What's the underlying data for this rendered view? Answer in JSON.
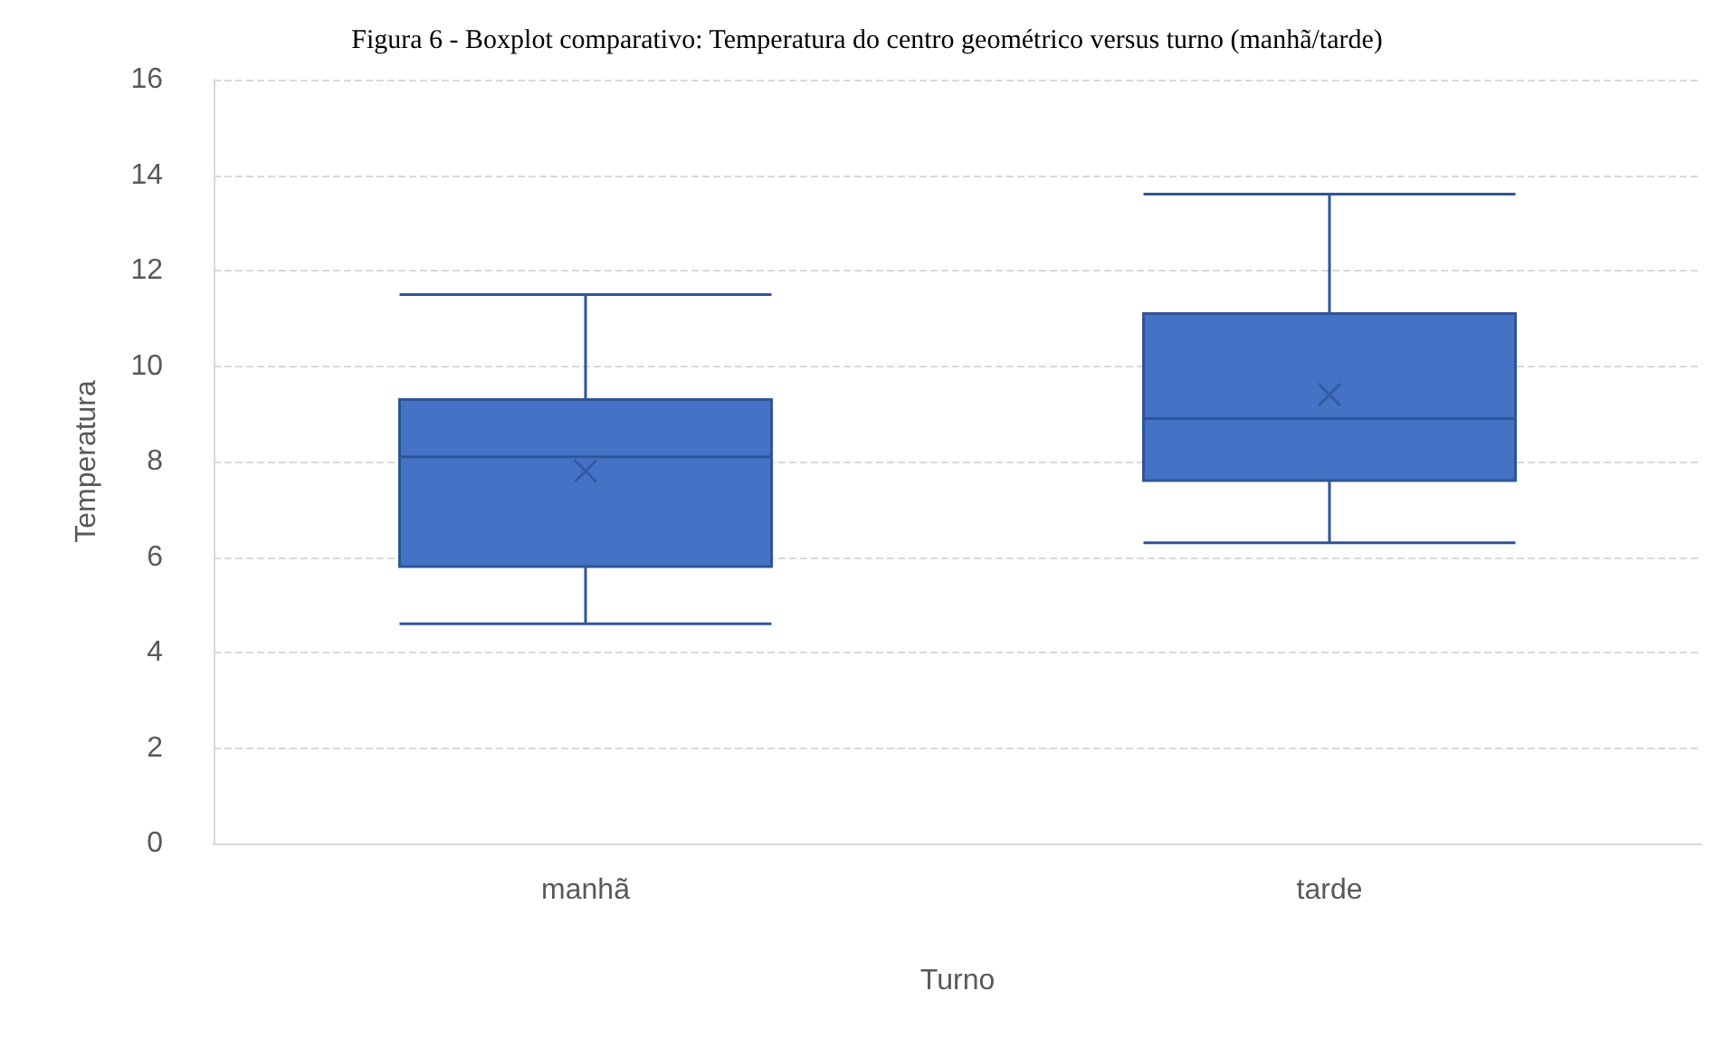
{
  "chart_data": {
    "type": "box",
    "title": "Figura 6 - Boxplot comparativo: Temperatura do centro geométrico versus turno (manhã/tarde)",
    "xlabel": "Turno",
    "ylabel": "Temperatura",
    "categories": [
      "manhã",
      "tarde"
    ],
    "color": "#4472c4",
    "boxes": [
      {
        "low": 4.6,
        "q1": 5.8,
        "median": 8.1,
        "q3": 9.3,
        "high": 11.5,
        "mean": 7.8
      },
      {
        "low": 6.3,
        "q1": 7.6,
        "median": 8.9,
        "q3": 11.1,
        "high": 13.6,
        "mean": 9.4
      }
    ],
    "ylim": [
      0,
      16
    ],
    "yticks": [
      0,
      2,
      4,
      6,
      8,
      10,
      12,
      14,
      16
    ],
    "grid": "y"
  }
}
